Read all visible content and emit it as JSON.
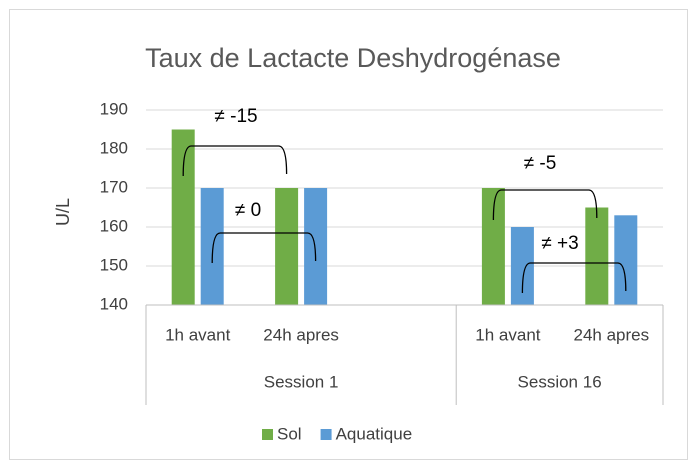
{
  "chart_data": {
    "type": "bar",
    "title": "Taux de Lactacte Deshydrogénase",
    "y_label": "U/L",
    "categories": [
      "1h avant",
      "24h apres",
      null,
      "1h avant",
      "24h apres"
    ],
    "groups": [
      {
        "name": "Session 1",
        "count": 3
      },
      {
        "name": "Session 16",
        "count": 2
      }
    ],
    "series": [
      {
        "name": "Sol",
        "color": "#70ad47",
        "values": [
          185,
          170,
          null,
          170,
          165
        ]
      },
      {
        "name": "Aquatique",
        "color": "#5b9bd5",
        "values": [
          170,
          170,
          null,
          160,
          163
        ]
      }
    ],
    "ylim": [
      140,
      190
    ],
    "yticks": [
      140,
      150,
      160,
      170,
      180,
      190
    ],
    "grid": true,
    "legend": "bottom",
    "annotations": [
      "≠ -15",
      "≠ 0",
      "≠ -5",
      "≠ +3"
    ]
  }
}
